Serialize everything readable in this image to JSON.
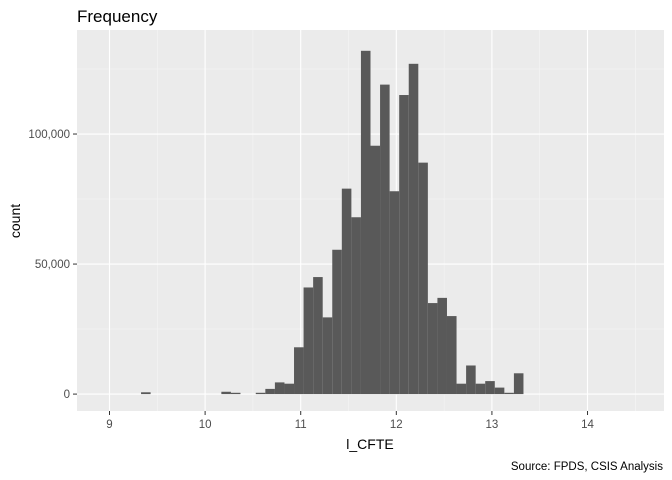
{
  "chart_data": {
    "type": "bar",
    "title": "Frequency",
    "xlabel": "l_CFTE",
    "ylabel": "count",
    "caption": "Source: FPDS, CSIS Analysis",
    "xlim": [
      8.66,
      14.8
    ],
    "ylim": [
      -6500,
      140000
    ],
    "x_ticks": [
      9,
      10,
      11,
      12,
      13,
      14
    ],
    "x_tick_labels": [
      "9",
      "10",
      "11",
      "12",
      "13",
      "14"
    ],
    "y_ticks": [
      0,
      50000,
      100000
    ],
    "y_tick_labels": [
      "0",
      "50,000",
      "100,000"
    ],
    "grid": true,
    "bin_width": 0.1,
    "bins": [
      {
        "start": 9.33,
        "count": 700
      },
      {
        "start": 10.17,
        "count": 900
      },
      {
        "start": 10.27,
        "count": 500
      },
      {
        "start": 10.53,
        "count": 500
      },
      {
        "start": 10.63,
        "count": 2000
      },
      {
        "start": 10.73,
        "count": 4500
      },
      {
        "start": 10.83,
        "count": 4000
      },
      {
        "start": 10.93,
        "count": 18000
      },
      {
        "start": 11.03,
        "count": 41000
      },
      {
        "start": 11.13,
        "count": 45000
      },
      {
        "start": 11.23,
        "count": 29500
      },
      {
        "start": 11.33,
        "count": 55500
      },
      {
        "start": 11.43,
        "count": 79000
      },
      {
        "start": 11.53,
        "count": 68000
      },
      {
        "start": 11.63,
        "count": 132000
      },
      {
        "start": 11.73,
        "count": 95500
      },
      {
        "start": 11.83,
        "count": 119000
      },
      {
        "start": 11.93,
        "count": 78000
      },
      {
        "start": 12.03,
        "count": 115000
      },
      {
        "start": 12.13,
        "count": 127000
      },
      {
        "start": 12.23,
        "count": 89000
      },
      {
        "start": 12.33,
        "count": 35000
      },
      {
        "start": 12.43,
        "count": 37000
      },
      {
        "start": 12.53,
        "count": 30000
      },
      {
        "start": 12.63,
        "count": 4000
      },
      {
        "start": 12.73,
        "count": 11000
      },
      {
        "start": 12.83,
        "count": 4000
      },
      {
        "start": 12.93,
        "count": 5000
      },
      {
        "start": 13.03,
        "count": 2500
      },
      {
        "start": 13.13,
        "count": 500
      },
      {
        "start": 13.23,
        "count": 8000
      }
    ],
    "colors": {
      "bar": "#595959",
      "panel": "#ebebeb",
      "grid_major": "#ffffff",
      "grid_minor": "#f5f5f5",
      "tick": "#333333"
    }
  }
}
